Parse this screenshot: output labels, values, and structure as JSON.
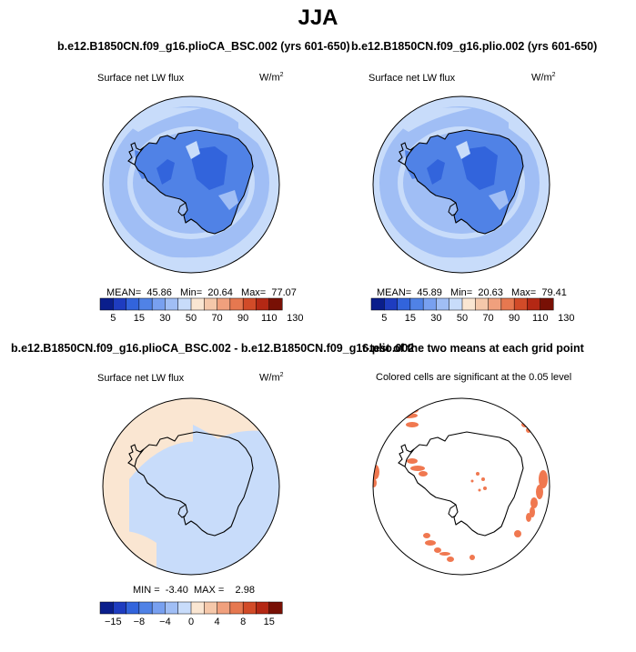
{
  "title": "JJA",
  "panels": [
    {
      "title": "b.e12.B1850CN.f09_g16.plioCA_BSC.002 (yrs 601-650)",
      "var": "Surface net LW flux",
      "units": "W/m",
      "units_sup": "2",
      "mean_label": "MEAN=",
      "mean": "45.86",
      "min_label": "Min=",
      "min": "20.64",
      "max_label": "Max=",
      "max": "77.07"
    },
    {
      "title": "b.e12.B1850CN.f09_g16.plio.002 (yrs 601-650)",
      "var": "Surface net LW flux",
      "units": "W/m",
      "units_sup": "2",
      "mean_label": "MEAN=",
      "mean": "45.89",
      "min_label": "Min=",
      "min": "20.63",
      "max_label": "Max=",
      "max": "79.41"
    },
    {
      "title": "b.e12.B1850CN.f09_g16.plioCA_BSC.002 - b.e12.B1850CN.f09_g16.plio.002",
      "var": "Surface net LW flux",
      "units": "W/m",
      "units_sup": "2",
      "min_label": "MIN =",
      "min": "-3.40",
      "max_label": "MAX =",
      "max": "2.98"
    },
    {
      "title": "t-test of the two means at each grid point",
      "subtitle": "Colored cells are significant at the 0.05 level"
    }
  ],
  "colorbars": {
    "abs": {
      "colors": [
        "#0a1e8c",
        "#1e3cc0",
        "#3264dc",
        "#5082e6",
        "#78a0f0",
        "#a0bef5",
        "#c8dcfa",
        "#fae6d2",
        "#f5c8aa",
        "#f0a07d",
        "#e67850",
        "#d24b28",
        "#b42814",
        "#781005"
      ],
      "ticks": [
        "5",
        "15",
        "30",
        "50",
        "70",
        "90",
        "110",
        "130"
      ]
    },
    "diff": {
      "colors": [
        "#0a1e8c",
        "#1e3cc0",
        "#3264dc",
        "#5082e6",
        "#78a0f0",
        "#a0bef5",
        "#c8dcfa",
        "#fae6d2",
        "#f5c8aa",
        "#f0a07d",
        "#e67850",
        "#d24b28",
        "#b42814",
        "#781005"
      ],
      "ticks": [
        "-15",
        "-8",
        "-4",
        "0",
        "4",
        "8",
        "15"
      ]
    }
  }
}
